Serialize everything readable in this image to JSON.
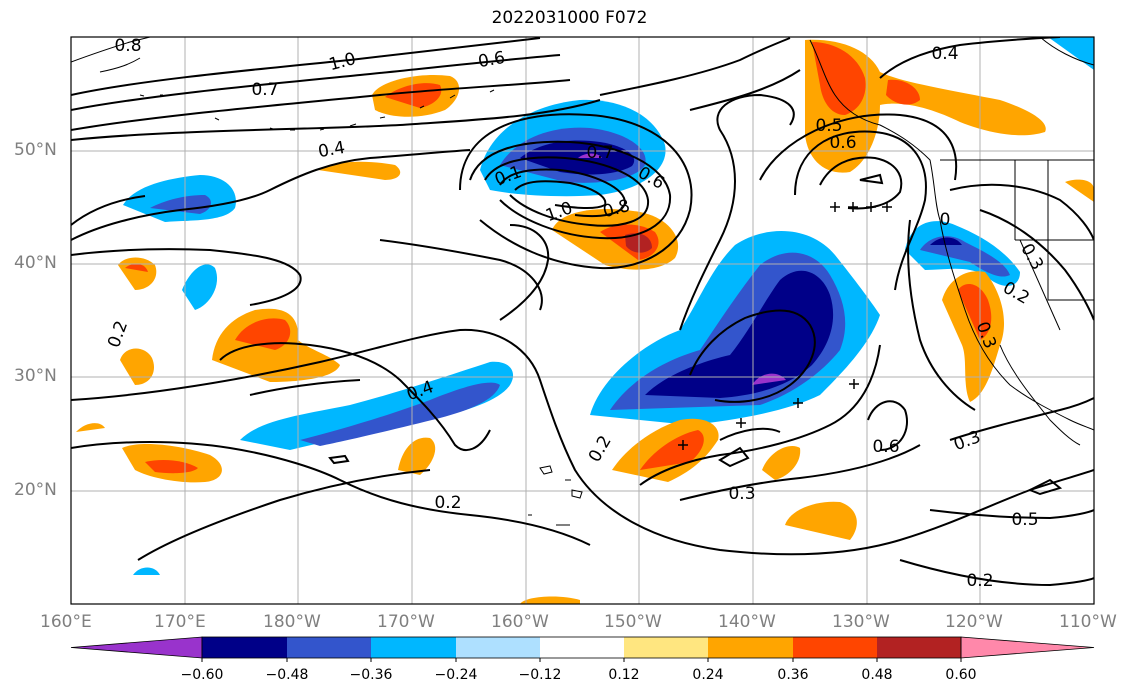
{
  "title": "2022031000 F072",
  "axes": {
    "lon_labels": [
      "160°E",
      "170°E",
      "180°W",
      "170°W",
      "160°W",
      "150°W",
      "140°W",
      "130°W",
      "120°W",
      "110°W"
    ],
    "lat_labels": [
      "50°N",
      "40°N",
      "30°N",
      "20°N"
    ],
    "label_color": "#7f7f7f",
    "grid": true
  },
  "colorbar": {
    "tick_labels": [
      "−0.60",
      "−0.48",
      "−0.36",
      "−0.24",
      "−0.12",
      "0.12",
      "0.24",
      "0.36",
      "0.48",
      "0.60"
    ],
    "colors": [
      "#9933cc",
      "#000088",
      "#3355cc",
      "#00b7ff",
      "#aee0ff",
      "#ffffff",
      "#ffe680",
      "#ffa500",
      "#ff4500",
      "#b22222",
      "#ff88aa"
    ],
    "extend": "both"
  },
  "contour_labels": [
    "0.8",
    "1.0",
    "0.6",
    "0.4",
    "0.7",
    "0.4",
    "0.2",
    "0.4",
    "0.1",
    "0.6",
    "1.0",
    "0.8",
    "0.5",
    "0.6",
    "0",
    "0.3",
    "0.2",
    "0.3",
    "0.2",
    "0.2",
    "0.3",
    "0.6",
    "0.3",
    "0.5",
    "0.2",
    "0.7"
  ]
}
